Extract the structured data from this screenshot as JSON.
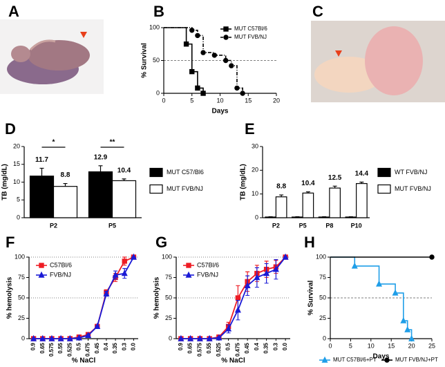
{
  "photo_panels": [
    {
      "panel": "A"
    },
    {
      "panel": "C"
    }
  ],
  "chart_data": [
    {
      "panel": "B",
      "type": "step",
      "xlabel": "Days",
      "ylabel": "% Survival",
      "xlim": [
        0,
        20
      ],
      "xticks": [
        0,
        5,
        10,
        15,
        20
      ],
      "ylim": [
        0,
        100
      ],
      "yticks": [
        0,
        50,
        100
      ],
      "hlines": [
        50
      ],
      "legend": "upper right",
      "series": [
        {
          "name": "MUT C57Bl/6",
          "color": "#000000",
          "marker": "square",
          "dash": false,
          "x": [
            0,
            4,
            5,
            6,
            7
          ],
          "values": [
            100,
            75,
            33,
            8,
            0
          ]
        },
        {
          "name": "MUT FVB/NJ",
          "color": "#000000",
          "marker": "circle",
          "dash": true,
          "x": [
            0,
            5,
            6,
            7,
            9,
            11,
            12,
            13,
            14
          ],
          "values": [
            100,
            96,
            88,
            62,
            58,
            50,
            42,
            8,
            0
          ]
        }
      ]
    },
    {
      "panel": "D",
      "type": "bar",
      "ylabel": "TB (mg/dL)",
      "categories": [
        "P2",
        "P5"
      ],
      "ylim": [
        0,
        20
      ],
      "yticks": [
        0,
        5,
        10,
        15,
        20
      ],
      "legend": "right",
      "annotations": [
        {
          "category": "P2",
          "text": "*"
        },
        {
          "category": "P5",
          "text": "**"
        }
      ],
      "series": [
        {
          "name": "MUT C57/Bl6",
          "color": "#000000",
          "show_labels": true,
          "values": [
            11.7,
            12.9
          ],
          "errors": [
            2.2,
            1.7
          ]
        },
        {
          "name": "MUT FVB/NJ",
          "color": "#ffffff",
          "show_labels": true,
          "values": [
            8.8,
            10.4
          ],
          "errors": [
            0.8,
            0.5
          ]
        }
      ]
    },
    {
      "panel": "E",
      "type": "bar",
      "ylabel": "TB (mg/dL)",
      "categories": [
        "P2",
        "P5",
        "P8",
        "P10"
      ],
      "ylim": [
        0,
        30
      ],
      "yticks": [
        0,
        10,
        20,
        30
      ],
      "legend": "right",
      "series": [
        {
          "name": "WT FVB/NJ",
          "color": "#000000",
          "show_labels": false,
          "values": [
            0.3,
            0.3,
            0.3,
            0.3
          ],
          "errors": [
            0.1,
            0.1,
            0.1,
            0.1
          ]
        },
        {
          "name": "MUT FVB/NJ",
          "color": "#ffffff",
          "show_labels": true,
          "values": [
            8.8,
            10.4,
            12.5,
            14.4
          ],
          "errors": [
            0.8,
            0.5,
            0.8,
            0.6
          ]
        }
      ]
    },
    {
      "panel": "F",
      "type": "line",
      "xlabel": "% NaCl",
      "ylabel": "% hemolysis",
      "categories": [
        "0.9",
        "0.65",
        "0.575",
        "0.55",
        "0.525",
        "0.5",
        "0.475",
        "0.45",
        "0.4",
        "0.35",
        "0.3",
        "0.0"
      ],
      "ylim": [
        0,
        100
      ],
      "yticks": [
        0,
        25,
        50,
        75,
        100
      ],
      "hlines": [
        50,
        100
      ],
      "legend": "upper left",
      "series": [
        {
          "name": "C57Bl/6",
          "color": "#ee1c24",
          "marker": "square",
          "values": [
            0,
            0,
            0,
            0,
            0,
            2,
            5,
            15,
            57,
            75,
            95,
            100
          ],
          "errors": [
            0,
            0,
            0,
            0,
            0,
            0,
            1,
            1,
            3,
            5,
            5,
            0
          ]
        },
        {
          "name": "FVB/NJ",
          "color": "#1a1ad6",
          "marker": "triangle",
          "values": [
            0,
            0,
            0,
            0,
            0,
            1,
            4,
            15,
            55,
            78,
            80,
            100
          ],
          "errors": [
            0,
            0,
            0,
            0,
            0,
            0,
            1,
            1,
            3,
            5,
            6,
            0
          ]
        }
      ]
    },
    {
      "panel": "G",
      "type": "line",
      "xlabel": "% NaCl",
      "ylabel": "% hemolysis",
      "categories": [
        "0.9",
        "0.65",
        "0.575",
        "0.55",
        "0.525",
        "0.5",
        "0.475",
        "0.45",
        "0.4",
        "0.35",
        "0.3",
        "0.0"
      ],
      "ylim": [
        0,
        100
      ],
      "yticks": [
        0,
        25,
        50,
        75,
        100
      ],
      "hlines": [
        50,
        100
      ],
      "legend": "upper left",
      "series": [
        {
          "name": "C57Bl/6",
          "color": "#ee1c24",
          "marker": "square",
          "values": [
            0,
            0,
            0,
            0,
            2,
            15,
            50,
            70,
            80,
            85,
            88,
            100
          ],
          "errors": [
            0,
            0,
            0,
            0,
            1,
            5,
            15,
            12,
            10,
            10,
            8,
            0
          ]
        },
        {
          "name": "FVB/NJ",
          "color": "#1a1ad6",
          "marker": "triangle",
          "values": [
            0,
            0,
            0,
            0,
            1,
            12,
            35,
            65,
            75,
            80,
            85,
            100
          ],
          "errors": [
            0,
            0,
            0,
            0,
            1,
            5,
            12,
            12,
            12,
            12,
            12,
            0
          ]
        }
      ]
    },
    {
      "panel": "H",
      "type": "step",
      "xlabel": "Days",
      "ylabel": "% Survival",
      "xlim": [
        0,
        25
      ],
      "xticks": [
        0,
        5,
        10,
        15,
        20,
        25
      ],
      "ylim": [
        0,
        100
      ],
      "yticks": [
        0,
        25,
        50,
        75,
        100
      ],
      "hlines": [
        50
      ],
      "legend": "bottom",
      "series": [
        {
          "name": "MUT C57Bl/6+PT",
          "color": "#1f9ee8",
          "marker": "triangle",
          "dash": false,
          "x": [
            0,
            6,
            12,
            16,
            18,
            19,
            20
          ],
          "values": [
            100,
            89,
            67,
            56,
            22,
            11,
            0
          ]
        },
        {
          "name": "MUT FVB/NJ+PT",
          "color": "#000000",
          "marker": "circle",
          "dash": false,
          "x": [
            0,
            25
          ],
          "values": [
            100,
            100
          ]
        }
      ]
    }
  ]
}
